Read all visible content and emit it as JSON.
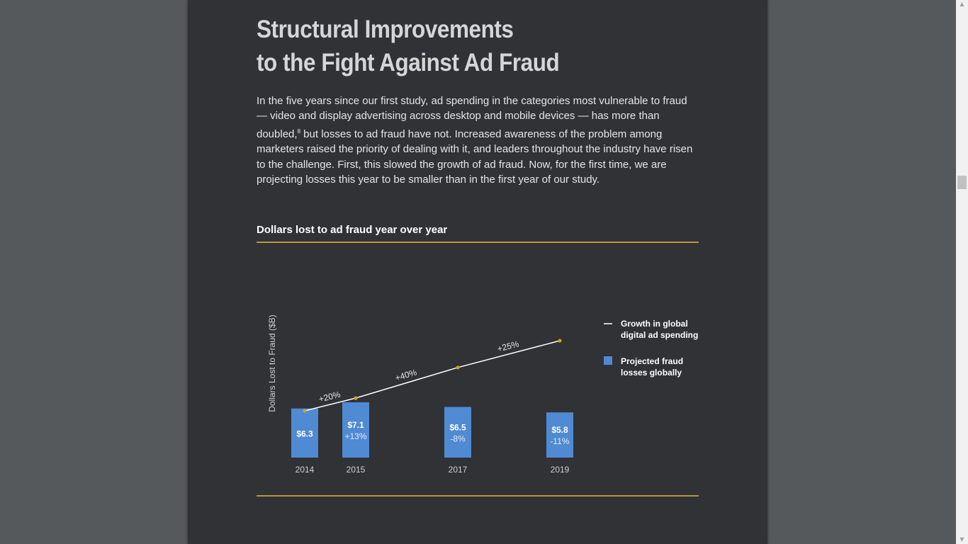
{
  "article": {
    "title_line1": "Structural Improvements",
    "title_line2": "to the Fight Against Ad Fraud",
    "intro_before_sup": "In the five years since our first study, ad spending in the categories most vulnerable to fraud — video and display advertising across desktop and mobile devices — has more than doubled,",
    "intro_sup": "8",
    "intro_after_sup": " but losses to ad fraud have not. Increased awareness of the problem among marketers raised the priority of dealing with it, and leaders throughout the industry have risen to the challenge. First, this slowed the growth of ad fraud. Now, for the first time, we are projecting losses this year to be smaller than in the first year of our study."
  },
  "chart_data": {
    "type": "bar",
    "title": "Dollars lost to ad fraud year over year",
    "ylabel": "Dollars Lost to Fraud ($B)",
    "xlabel": "",
    "categories": [
      "2014",
      "2015",
      "2017",
      "2019"
    ],
    "series": [
      {
        "name": "Projected fraud losses globally",
        "values": [
          6.3,
          7.1,
          6.5,
          5.8
        ],
        "value_labels": [
          "$6.3",
          "$7.1",
          "$6.5",
          "$5.8"
        ],
        "change_labels": [
          "",
          "+13%",
          "-8%",
          "-11%"
        ],
        "color": "#4f8ad3"
      },
      {
        "name": "Growth in global digital ad spending",
        "index": [
          1.0,
          1.2,
          1.68,
          2.1
        ],
        "segment_labels": [
          "+20%",
          "+40%",
          "+25%"
        ],
        "color": "#ffffff",
        "marker_color": "#c9a227"
      }
    ],
    "legend": [
      {
        "line1": "Growth in global",
        "line2": "digital ad spending",
        "kind": "line"
      },
      {
        "line1": "Projected fraud",
        "line2": "losses globally",
        "kind": "square"
      }
    ],
    "legend_position": "right"
  },
  "scrollbar": {
    "up_arrow": "▲",
    "down_arrow": "▼"
  }
}
